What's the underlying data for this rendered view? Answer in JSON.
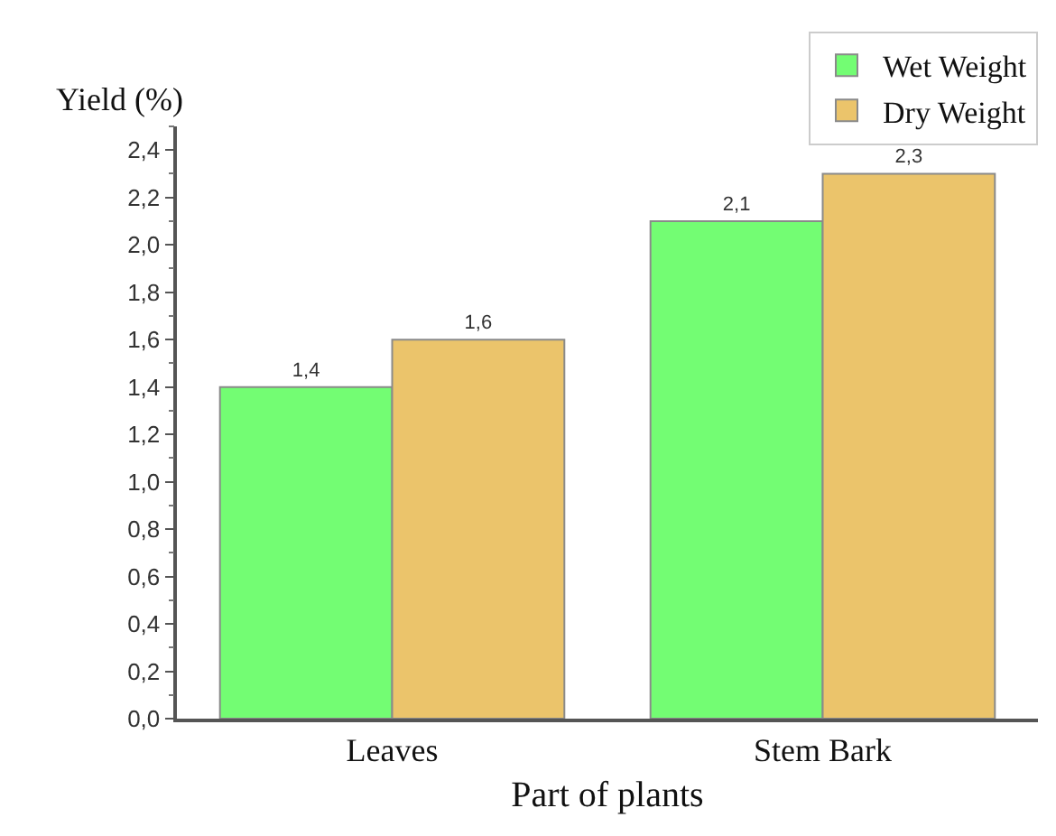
{
  "chart_data": {
    "type": "bar",
    "xlabel": "Part of plants",
    "ylabel": "Yield (%)",
    "categories": [
      "Leaves",
      "Stem Bark"
    ],
    "series": [
      {
        "name": "Wet Weight",
        "color": "#73fd73",
        "values": [
          1.4,
          2.1
        ],
        "value_labels": [
          "1,4",
          "2,1"
        ]
      },
      {
        "name": "Dry Weight",
        "color": "#ebc46b",
        "values": [
          1.6,
          2.3
        ],
        "value_labels": [
          "1,6",
          "2,3"
        ]
      }
    ],
    "ylim": [
      0,
      2.5
    ],
    "yticks": [
      {
        "value": 0,
        "label": "0,0"
      },
      {
        "value": 0.2,
        "label": "0,2"
      },
      {
        "value": 0.4,
        "label": "0,4"
      },
      {
        "value": 0.6,
        "label": "0,6"
      },
      {
        "value": 0.8,
        "label": "0,8"
      },
      {
        "value": 1.0,
        "label": "1,0"
      },
      {
        "value": 1.2,
        "label": "1,2"
      },
      {
        "value": 1.4,
        "label": "1,4"
      },
      {
        "value": 1.6,
        "label": "1,6"
      },
      {
        "value": 1.8,
        "label": "1,8"
      },
      {
        "value": 2.0,
        "label": "2,0"
      },
      {
        "value": 2.2,
        "label": "2,2"
      },
      {
        "value": 2.4,
        "label": "2,4"
      }
    ],
    "legend": "top right"
  }
}
